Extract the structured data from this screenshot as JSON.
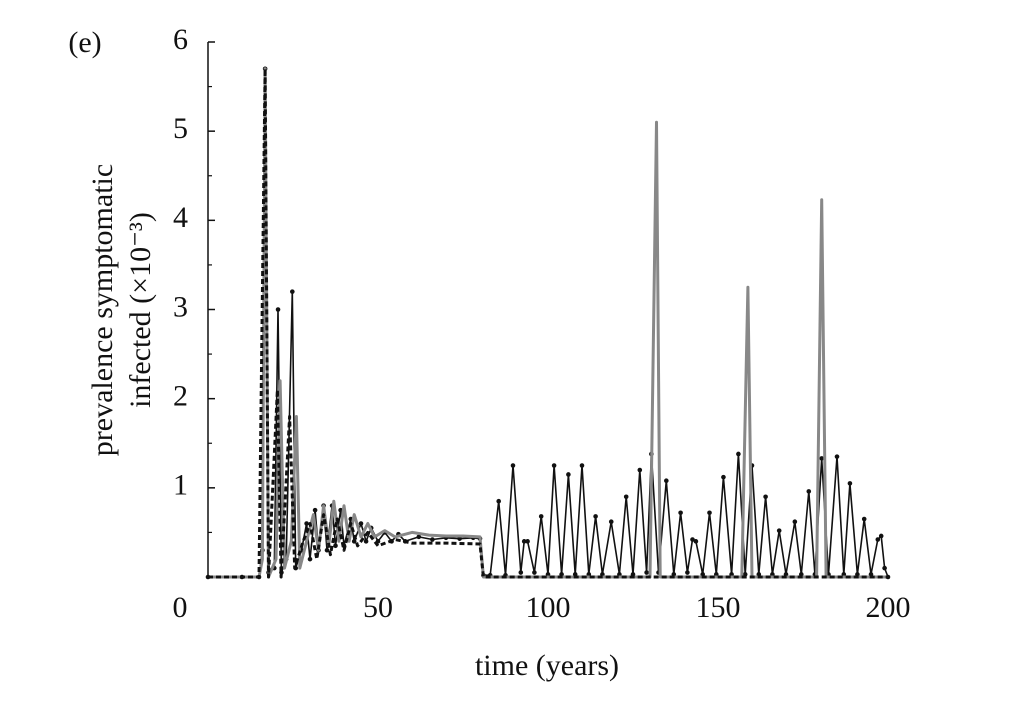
{
  "chart_data": {
    "type": "line",
    "panel_label": "(e)",
    "ylabel": [
      "prevalence symptomatic",
      "infected (×10⁻³)"
    ],
    "xlabel": "time (years)",
    "xlim": [
      0,
      200
    ],
    "xticks": [
      0,
      50,
      100,
      150,
      200
    ],
    "ylim": [
      0,
      6
    ],
    "yticks": [
      1,
      2,
      3,
      4,
      5,
      6
    ],
    "yminor_ticks": [
      0.5,
      1.5,
      2.5,
      3.5,
      4.5,
      5.5
    ],
    "series": [
      {
        "color": "#111111",
        "style": "solid-markers",
        "x": [
          0,
          10,
          15,
          16,
          16.8,
          17.8,
          19.5,
          20.6,
          21.6,
          23,
          24.8,
          25.8,
          27.5,
          29,
          30,
          31.5,
          32.5,
          34,
          35,
          36.5,
          37.5,
          39,
          40,
          42,
          43,
          45,
          46.5,
          48,
          50,
          52,
          54,
          56,
          58,
          62,
          66,
          70,
          74,
          78,
          80,
          81,
          83,
          85.5,
          87.5,
          89.7,
          92,
          93,
          94,
          96,
          98,
          100,
          101.8,
          104,
          106,
          108,
          110,
          112,
          114,
          116,
          118.6,
          121,
          123,
          125,
          127,
          129,
          130.4,
          132.5,
          134.8,
          137,
          139,
          141,
          142.5,
          143.5,
          145.5,
          147.5,
          149.5,
          151.6,
          154,
          156,
          158,
          160,
          162,
          164,
          166,
          168,
          170,
          172.6,
          174.5,
          176.7,
          178.5,
          180.5,
          182.5,
          185,
          187,
          188.8,
          191,
          193,
          195,
          197,
          198,
          199,
          200
        ],
        "values": [
          0,
          0,
          0,
          0.3,
          5.7,
          0.05,
          0.1,
          3.0,
          0.05,
          0.2,
          3.2,
          0.1,
          0.3,
          0.6,
          0.2,
          0.75,
          0.3,
          0.8,
          0.3,
          0.8,
          0.35,
          0.75,
          0.35,
          0.65,
          0.4,
          0.6,
          0.4,
          0.55,
          0.4,
          0.5,
          0.4,
          0.48,
          0.4,
          0.45,
          0.42,
          0.44,
          0.43,
          0.44,
          0.43,
          0.02,
          0.02,
          0.85,
          0.02,
          1.25,
          0.05,
          0.4,
          0.4,
          0.05,
          0.68,
          0.03,
          1.25,
          0.03,
          1.15,
          0.03,
          1.25,
          0.03,
          0.68,
          0.03,
          0.62,
          0.03,
          0.9,
          0.03,
          1.2,
          0.05,
          1.38,
          0.05,
          1.08,
          0.03,
          0.72,
          0.05,
          0.42,
          0.4,
          0.03,
          0.72,
          0.03,
          1.12,
          0.03,
          1.38,
          0.03,
          1.25,
          0.03,
          0.9,
          0.03,
          0.52,
          0.03,
          0.62,
          0.03,
          0.96,
          0.03,
          1.33,
          0.03,
          1.35,
          0.03,
          1.05,
          0.03,
          0.65,
          0.03,
          0.42,
          0.46,
          0.1,
          0
        ]
      },
      {
        "color": "#888888",
        "style": "solid",
        "x": [
          0,
          15,
          16,
          16.8,
          17.8,
          20,
          21.2,
          22.5,
          24.5,
          26,
          27,
          29,
          31,
          32.5,
          34,
          35.5,
          37,
          38.5,
          40,
          41.5,
          43,
          45,
          47,
          49,
          52,
          55,
          60,
          65,
          70,
          75,
          80,
          81,
          130,
          131.9,
          133,
          157,
          158.8,
          160,
          179,
          180.5,
          181.8,
          200
        ],
        "values": [
          0,
          0,
          0.2,
          5.7,
          0,
          0.2,
          2.2,
          0.1,
          0.4,
          1.8,
          0.1,
          0.4,
          0.7,
          0.3,
          0.8,
          0.35,
          0.85,
          0.4,
          0.8,
          0.4,
          0.7,
          0.45,
          0.6,
          0.45,
          0.52,
          0.45,
          0.5,
          0.47,
          0.46,
          0.46,
          0.45,
          0,
          0,
          5.1,
          0,
          0,
          3.25,
          0,
          0,
          4.23,
          0,
          0
        ]
      },
      {
        "color": "#111111",
        "style": "dashed",
        "x": [
          0,
          15,
          16.8,
          17.8,
          20.4,
          21.5,
          24,
          25.5,
          28,
          30,
          32,
          34,
          36,
          38,
          40,
          42,
          44,
          47,
          50,
          55,
          60,
          70,
          80,
          81,
          200
        ],
        "values": [
          0,
          0,
          5.7,
          0,
          2.1,
          0,
          1.8,
          0.1,
          0.4,
          0.6,
          0.2,
          0.7,
          0.25,
          0.65,
          0.3,
          0.6,
          0.35,
          0.5,
          0.35,
          0.42,
          0.38,
          0.38,
          0.37,
          0,
          0
        ]
      }
    ]
  }
}
